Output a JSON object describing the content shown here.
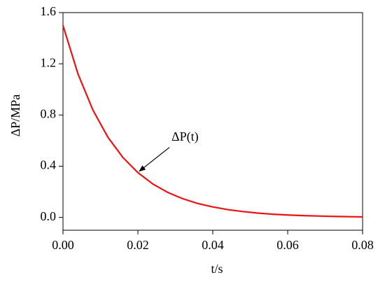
{
  "chart_data": {
    "type": "line",
    "xlabel": "t/s",
    "ylabel": "ΔP/MPa",
    "annotation": "ΔP(t)",
    "x": [
      0,
      0.004,
      0.008,
      0.012,
      0.016,
      0.02,
      0.024,
      0.028,
      0.032,
      0.036,
      0.04,
      0.044,
      0.048,
      0.052,
      0.056,
      0.06,
      0.064,
      0.068,
      0.072,
      0.076,
      0.08
    ],
    "series": [
      {
        "name": "ΔP(t)",
        "color": "#ee1111",
        "values": [
          1.5,
          1.121,
          0.838,
          0.626,
          0.468,
          0.35,
          0.261,
          0.195,
          0.146,
          0.109,
          0.082,
          0.061,
          0.046,
          0.034,
          0.025,
          0.019,
          0.014,
          0.011,
          0.008,
          0.006,
          0.004
        ]
      }
    ],
    "xlim": [
      0,
      0.08
    ],
    "xticks": [
      {
        "value": 0,
        "label": "0.00"
      },
      0.02,
      0.04,
      0.06,
      0.08
    ],
    "ylim": [
      -0.1,
      1.6
    ],
    "yticks": [
      {
        "value": 0,
        "label": "0.0"
      },
      0.4,
      0.8,
      1.2,
      1.6
    ]
  }
}
